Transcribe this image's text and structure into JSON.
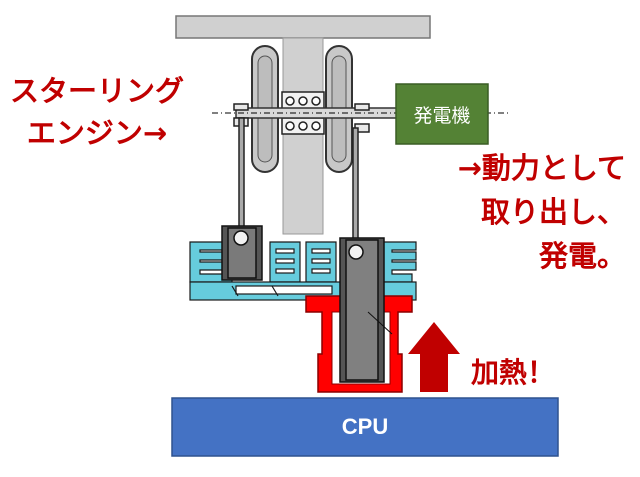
{
  "labels": {
    "engine": [
      "スターリング",
      "エンジン→"
    ],
    "output": [
      "→動力として",
      "取り出し、",
      "発電。"
    ],
    "heat": "加熱！",
    "generator": "発電機",
    "cpu": "CPU"
  },
  "colors": {
    "annotation_red": "#c00000",
    "generator_green": "#548235",
    "cpu_blue": "#4472c4",
    "heater_red": "#ff0000",
    "cooler_cyan": "#66ccdd",
    "frame_gray": "#d0d0d0"
  }
}
